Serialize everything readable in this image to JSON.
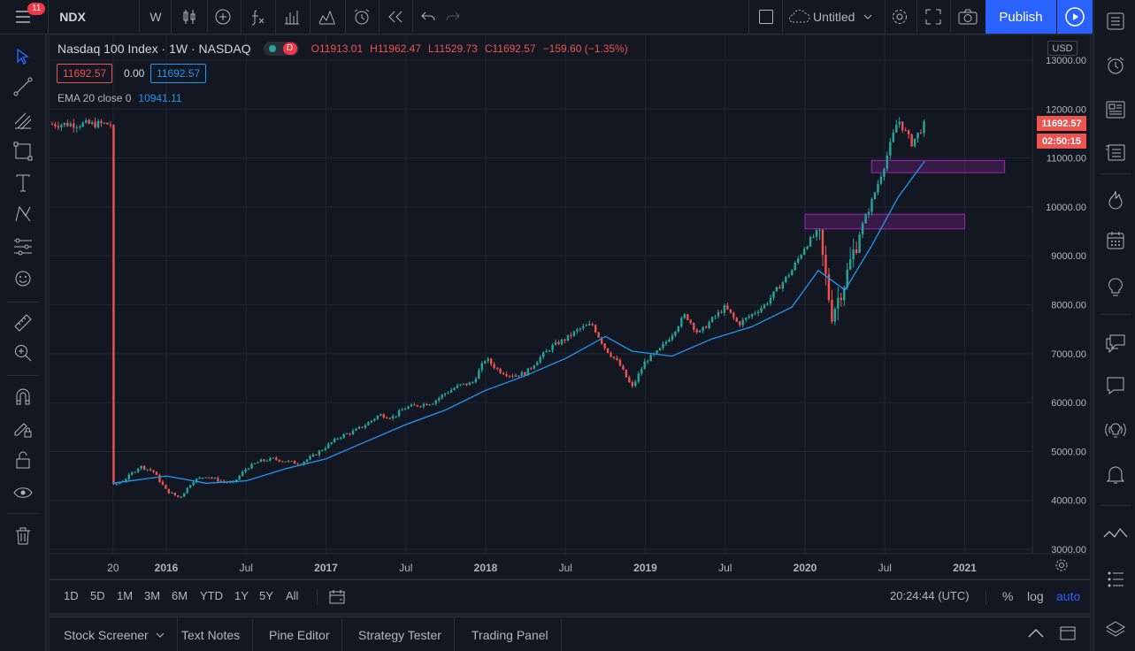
{
  "topbar": {
    "menu_badge": "11",
    "symbol": "NDX",
    "interval": "W",
    "layout_name": "Untitled",
    "publish_label": "Publish"
  },
  "legend": {
    "title": "Nasdaq 100 Index · 1W · NASDAQ",
    "d_badge": "D",
    "open": "O11913.01",
    "high": "H11962.47",
    "low": "L11529.73",
    "close": "C11692.57",
    "change": "−159.60 (−1.35%)",
    "bid": "11692.57",
    "spread": "0.00",
    "ask": "11692.57",
    "indicator_name": "EMA 20 close 0",
    "indicator_value": "10941.11"
  },
  "price_axis": {
    "currency": "USD",
    "last_price_label": "11692.57",
    "countdown": "02:50:15",
    "ticks": [
      "13000.00",
      "12000.00",
      "11000.00",
      "10000.00",
      "9000.00",
      "8000.00",
      "7000.00",
      "6000.00",
      "5000.00",
      "4000.00",
      "3000.00"
    ]
  },
  "time_axis": {
    "ticks": [
      "20",
      "2016",
      "Jul",
      "2017",
      "Jul",
      "2018",
      "Jul",
      "2019",
      "Jul",
      "2020",
      "Jul",
      "2021"
    ]
  },
  "timeframes": [
    "1D",
    "5D",
    "1M",
    "3M",
    "6M",
    "YTD",
    "1Y",
    "5Y",
    "All"
  ],
  "status": {
    "clock": "20:24:44 (UTC)",
    "percent": "%",
    "log": "log",
    "auto": "auto"
  },
  "bottom_tabs": [
    "Stock Screener",
    "Text Notes",
    "Pine Editor",
    "Strategy Tester",
    "Trading Panel"
  ],
  "colors": {
    "up": "#26a69a",
    "down": "#ef5350",
    "ema": "#2196f3",
    "zone": "#9c27b0",
    "accent": "#2962ff"
  },
  "chart_data": {
    "type": "line",
    "series": [
      {
        "name": "Nasdaq 100 Index",
        "points": [
          [
            "2015-09",
            4300
          ],
          [
            "2015-10",
            4450
          ],
          [
            "2015-11",
            4700
          ],
          [
            "2015-12",
            4600
          ],
          [
            "2016-01",
            4200
          ],
          [
            "2016-02",
            4050
          ],
          [
            "2016-03",
            4400
          ],
          [
            "2016-04",
            4500
          ],
          [
            "2016-05",
            4400
          ],
          [
            "2016-06",
            4350
          ],
          [
            "2016-07",
            4650
          ],
          [
            "2016-08",
            4800
          ],
          [
            "2016-09",
            4850
          ],
          [
            "2016-10",
            4800
          ],
          [
            "2016-11",
            4750
          ],
          [
            "2016-12",
            4900
          ],
          [
            "2017-01",
            5100
          ],
          [
            "2017-02",
            5300
          ],
          [
            "2017-03",
            5400
          ],
          [
            "2017-04",
            5550
          ],
          [
            "2017-05",
            5750
          ],
          [
            "2017-06",
            5700
          ],
          [
            "2017-07",
            5900
          ],
          [
            "2017-08",
            5950
          ],
          [
            "2017-09",
            6000
          ],
          [
            "2017-10",
            6200
          ],
          [
            "2017-11",
            6350
          ],
          [
            "2017-12",
            6400
          ],
          [
            "2018-01",
            6900
          ],
          [
            "2018-02",
            6650
          ],
          [
            "2018-03",
            6550
          ],
          [
            "2018-04",
            6600
          ],
          [
            "2018-05",
            6900
          ],
          [
            "2018-06",
            7150
          ],
          [
            "2018-07",
            7300
          ],
          [
            "2018-08",
            7500
          ],
          [
            "2018-09",
            7600
          ],
          [
            "2018-10",
            7100
          ],
          [
            "2018-11",
            6800
          ],
          [
            "2018-12",
            6300
          ],
          [
            "2019-01",
            6850
          ],
          [
            "2019-02",
            7050
          ],
          [
            "2019-03",
            7400
          ],
          [
            "2019-04",
            7800
          ],
          [
            "2019-05",
            7400
          ],
          [
            "2019-06",
            7700
          ],
          [
            "2019-07",
            7950
          ],
          [
            "2019-08",
            7600
          ],
          [
            "2019-09",
            7800
          ],
          [
            "2019-10",
            8000
          ],
          [
            "2019-11",
            8350
          ],
          [
            "2019-12",
            8700
          ],
          [
            "2020-01",
            9200
          ],
          [
            "2020-02",
            9500
          ],
          [
            "2020-03",
            7800
          ],
          [
            "2020-04",
            8500
          ],
          [
            "2020-05",
            9400
          ],
          [
            "2020-06",
            10100
          ],
          [
            "2020-07",
            10900
          ],
          [
            "2020-08",
            11800
          ],
          [
            "2020-09",
            11300
          ],
          [
            "2020-10",
            11692.57
          ]
        ]
      },
      {
        "name": "EMA 20 close 0",
        "points": [
          [
            "2015-09",
            4350
          ],
          [
            "2016-01",
            4500
          ],
          [
            "2016-04",
            4350
          ],
          [
            "2016-07",
            4400
          ],
          [
            "2016-10",
            4650
          ],
          [
            "2017-01",
            4850
          ],
          [
            "2017-04",
            5200
          ],
          [
            "2017-07",
            5550
          ],
          [
            "2017-10",
            5850
          ],
          [
            "2018-01",
            6250
          ],
          [
            "2018-04",
            6550
          ],
          [
            "2018-07",
            6900
          ],
          [
            "2018-10",
            7350
          ],
          [
            "2018-12",
            7050
          ],
          [
            "2019-03",
            6950
          ],
          [
            "2019-06",
            7300
          ],
          [
            "2019-09",
            7550
          ],
          [
            "2019-12",
            7950
          ],
          [
            "2020-02",
            8700
          ],
          [
            "2020-04",
            8300
          ],
          [
            "2020-06",
            9200
          ],
          [
            "2020-08",
            10200
          ],
          [
            "2020-10",
            10941.11
          ]
        ]
      }
    ],
    "zones": [
      {
        "from": "2020-01",
        "to": "2021-01",
        "low": 9550,
        "high": 9850
      },
      {
        "from": "2020-06",
        "to": "2021-04",
        "low": 10700,
        "high": 10950
      }
    ],
    "xlabel": "",
    "ylabel": "",
    "ylim": [
      3000,
      13000
    ]
  }
}
